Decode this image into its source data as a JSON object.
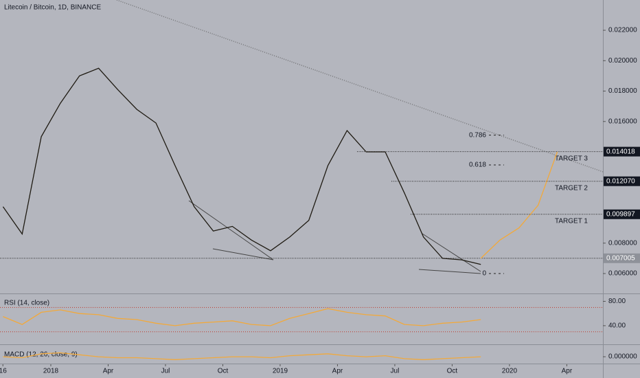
{
  "header": {
    "title": "Litecoin / Bitcoin, 1D, BINANCE"
  },
  "chart_data": [
    {
      "type": "line",
      "x": [
        "2017-10",
        "2017-11",
        "2017-12",
        "2018-01",
        "2018-02",
        "2018-03",
        "2018-04",
        "2018-05",
        "2018-06",
        "2018-07",
        "2018-08",
        "2018-09",
        "2018-10",
        "2018-11",
        "2018-12",
        "2019-01",
        "2019-02",
        "2019-03",
        "2019-04",
        "2019-05",
        "2019-06",
        "2019-07",
        "2019-08",
        "2019-09",
        "2019-10",
        "2019-11"
      ],
      "series": [
        {
          "color": "#1e1a12",
          "values": [
            0.0104,
            0.0086,
            0.015,
            0.0172,
            0.019,
            0.0195,
            0.0181,
            0.0168,
            0.0159,
            0.0131,
            0.0104,
            0.0088,
            0.0091,
            0.0082,
            0.0075,
            0.0084,
            0.0095,
            0.0131,
            0.0154,
            0.014,
            0.014,
            0.0113,
            0.0084,
            0.007,
            0.0069,
            0.0066
          ]
        },
        {
          "color": "#f2a93b",
          "x": [
            "2019-11",
            "2019-12",
            "2020-01",
            "2020-02",
            "2020-03"
          ],
          "values": [
            0.007,
            0.0082,
            0.009,
            0.0105,
            0.014
          ]
        }
      ],
      "ylim": [
        0.00469,
        0.02399
      ],
      "yticks": [
        {
          "value": 0.022,
          "label": "0.022000"
        },
        {
          "value": 0.02,
          "label": "0.020000"
        },
        {
          "value": 0.018,
          "label": "0.018000"
        },
        {
          "value": 0.016,
          "label": "0.016000"
        },
        {
          "value": 0.008,
          "label": "0.008000"
        },
        {
          "value": 0.006,
          "label": "0.006000"
        }
      ],
      "levels": [
        {
          "value": 0.014018,
          "label": "0.014018",
          "target": "TARGET 3"
        },
        {
          "value": 0.01207,
          "label": "0.012070",
          "target": "TARGET 2"
        },
        {
          "value": 0.009897,
          "label": "0.009897",
          "target": "TARGET 1"
        },
        {
          "value": 0.007005,
          "label": "0.007005"
        }
      ],
      "fib": [
        {
          "label": "0.786",
          "value": 0.0151
        },
        {
          "label": "0.618",
          "value": 0.01314
        },
        {
          "label": "0",
          "value": 0.006
        }
      ],
      "xticks": [
        {
          "value": "2017-10-16",
          "label": "16"
        },
        {
          "value": "2018-01",
          "label": "2018"
        },
        {
          "value": "2018-04",
          "label": "Apr"
        },
        {
          "value": "2018-07",
          "label": "Jul"
        },
        {
          "value": "2018-10",
          "label": "Oct"
        },
        {
          "value": "2019-01",
          "label": "2019"
        },
        {
          "value": "2019-04",
          "label": "Apr"
        },
        {
          "value": "2019-07",
          "label": "Jul"
        },
        {
          "value": "2019-10",
          "label": "Oct"
        },
        {
          "value": "2020-01",
          "label": "2020"
        },
        {
          "value": "2020-04",
          "label": "Apr"
        }
      ]
    },
    {
      "type": "line",
      "title": "RSI (14, close)",
      "color": "#f2a93b",
      "values": [
        55,
        42,
        62,
        66,
        60,
        58,
        52,
        50,
        44,
        40,
        44,
        46,
        48,
        42,
        40,
        52,
        60,
        68,
        62,
        58,
        56,
        42,
        40,
        44,
        46,
        50
      ],
      "ylim": [
        9.4,
        91.8
      ],
      "yticks": [
        {
          "value": 80,
          "label": "80.00"
        },
        {
          "value": 40,
          "label": "40.00"
        }
      ],
      "bands": [
        70,
        30
      ]
    },
    {
      "type": "line",
      "title": "MACD (12, 26, close, 9)",
      "color": "#f2a93b",
      "values": [
        0,
        -0.0001,
        0.0003,
        0.0004,
        0.0002,
        0,
        -0.0001,
        -0.0001,
        -0.0002,
        -0.0003,
        -0.0002,
        -0.0001,
        0,
        0,
        -0.0001,
        0.0001,
        0.0002,
        0.0003,
        0.0001,
        0,
        0.0001,
        -0.0002,
        -0.0003,
        -0.0002,
        -0.0001,
        0
      ],
      "ylim": [
        -0.0007,
        0.0012
      ],
      "yticks": [
        {
          "value": 0,
          "label": "0.000000"
        }
      ]
    }
  ]
}
